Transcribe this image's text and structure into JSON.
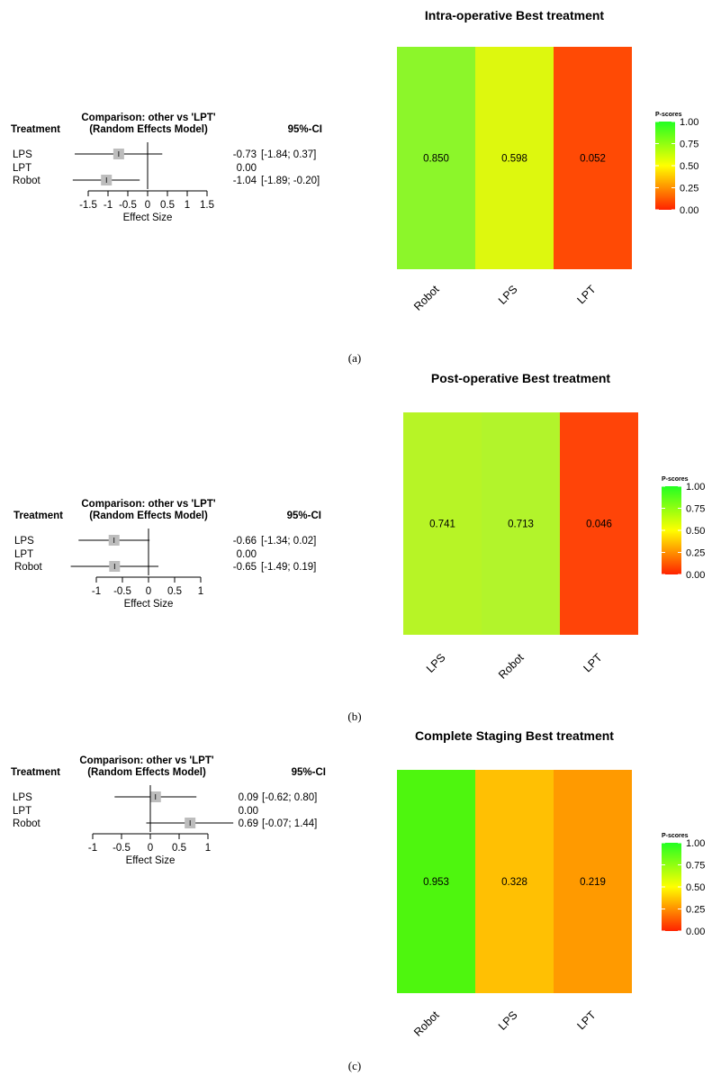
{
  "chart_data": [
    {
      "id": "a",
      "panel_label": "(a)",
      "forest": {
        "type": "forest",
        "header_treatment": "Treatment",
        "header_comparison_line1": "Comparison: other vs 'LPT'",
        "header_comparison_line2": "(Random Effects Model)",
        "header_ci": "95%-CI",
        "xlabel": "Effect Size",
        "xlim": [
          -1.5,
          1.5
        ],
        "ticks": [
          -1.5,
          -1,
          -0.5,
          0,
          0.5,
          1,
          1.5
        ],
        "tick_labels": [
          "-1.5",
          "-1",
          "-0.5",
          "0",
          "0.5",
          "1",
          "1.5"
        ],
        "rows": [
          {
            "treatment": "LPS",
            "estimate": -0.73,
            "lower": -1.84,
            "upper": 0.37,
            "estimate_text": "-0.73",
            "ci_text": "[-1.84;  0.37]"
          },
          {
            "treatment": "LPT",
            "estimate": 0.0,
            "lower": null,
            "upper": null,
            "estimate_text": "0.00",
            "ci_text": ""
          },
          {
            "treatment": "Robot",
            "estimate": -1.04,
            "lower": -1.89,
            "upper": -0.2,
            "estimate_text": "-1.04",
            "ci_text": "[-1.89; -0.20]"
          }
        ]
      },
      "heatmap": {
        "type": "heatmap",
        "title": "Intra-operative Best treatment",
        "categories": [
          "Robot",
          "LPS",
          "LPT"
        ],
        "values": [
          0.85,
          0.598,
          0.052
        ],
        "value_labels": [
          "0.850",
          "0.598",
          "0.052"
        ],
        "colors": [
          "#8CF62A",
          "#DDF80E",
          "#FF4A05"
        ],
        "legend_title": "P-scores",
        "legend_ticks": [
          "1.00",
          "0.75",
          "0.50",
          "0.25",
          "0.00"
        ],
        "legend_tick_values": [
          1.0,
          0.75,
          0.5,
          0.25,
          0.0
        ]
      }
    },
    {
      "id": "b",
      "panel_label": "(b)",
      "forest": {
        "type": "forest",
        "header_treatment": "Treatment",
        "header_comparison_line1": "Comparison: other vs 'LPT'",
        "header_comparison_line2": "(Random Effects Model)",
        "header_ci": "95%-CI",
        "xlabel": "Effect Size",
        "xlim": [
          -1,
          1
        ],
        "ticks": [
          -1,
          -0.5,
          0,
          0.5,
          1
        ],
        "tick_labels": [
          "-1",
          "-0.5",
          "0",
          "0.5",
          "1"
        ],
        "rows": [
          {
            "treatment": "LPS",
            "estimate": -0.66,
            "lower": -1.34,
            "upper": 0.02,
            "estimate_text": "-0.66",
            "ci_text": "[-1.34; 0.02]"
          },
          {
            "treatment": "LPT",
            "estimate": 0.0,
            "lower": null,
            "upper": null,
            "estimate_text": "0.00",
            "ci_text": ""
          },
          {
            "treatment": "Robot",
            "estimate": -0.65,
            "lower": -1.49,
            "upper": 0.19,
            "estimate_text": "-0.65",
            "ci_text": "[-1.49; 0.19]"
          }
        ]
      },
      "heatmap": {
        "type": "heatmap",
        "title": "Post-operative Best treatment",
        "categories": [
          "LPS",
          "Robot",
          "LPT"
        ],
        "values": [
          0.741,
          0.713,
          0.046
        ],
        "value_labels": [
          "0.741",
          "0.713",
          "0.046"
        ],
        "colors": [
          "#B7F426",
          "#B2F42B",
          "#FF4408"
        ],
        "legend_title": "P-scores",
        "legend_ticks": [
          "1.00",
          "0.75",
          "0.50",
          "0.25",
          "0.00"
        ],
        "legend_tick_values": [
          1.0,
          0.75,
          0.5,
          0.25,
          0.0
        ]
      }
    },
    {
      "id": "c",
      "panel_label": "(c)",
      "forest": {
        "type": "forest",
        "header_treatment": "Treatment",
        "header_comparison_line1": "Comparison: other vs 'LPT'",
        "header_comparison_line2": "(Random Effects Model)",
        "header_ci": "95%-CI",
        "xlabel": "Effect Size",
        "xlim": [
          -1,
          1
        ],
        "ticks": [
          -1,
          -0.5,
          0,
          0.5,
          1
        ],
        "tick_labels": [
          "-1",
          "-0.5",
          "0",
          "0.5",
          "1"
        ],
        "rows": [
          {
            "treatment": "LPS",
            "estimate": 0.09,
            "lower": -0.62,
            "upper": 0.8,
            "estimate_text": "0.09",
            "ci_text": "[-0.62; 0.80]"
          },
          {
            "treatment": "LPT",
            "estimate": 0.0,
            "lower": null,
            "upper": null,
            "estimate_text": "0.00",
            "ci_text": ""
          },
          {
            "treatment": "Robot",
            "estimate": 0.69,
            "lower": -0.07,
            "upper": 1.44,
            "estimate_text": "0.69",
            "ci_text": "[-0.07; 1.44]"
          }
        ]
      },
      "heatmap": {
        "type": "heatmap",
        "title": "Complete Staging Best treatment",
        "categories": [
          "Robot",
          "LPS",
          "LPT"
        ],
        "values": [
          0.953,
          0.328,
          0.219
        ],
        "value_labels": [
          "0.953",
          "0.328",
          "0.219"
        ],
        "colors": [
          "#4EF60E",
          "#FFC003",
          "#FF9A00"
        ],
        "legend_title": "P-scores",
        "legend_ticks": [
          "1.00",
          "0.75",
          "0.50",
          "0.25",
          "0.00"
        ],
        "legend_tick_values": [
          1.0,
          0.75,
          0.5,
          0.25,
          0.0
        ]
      }
    }
  ]
}
